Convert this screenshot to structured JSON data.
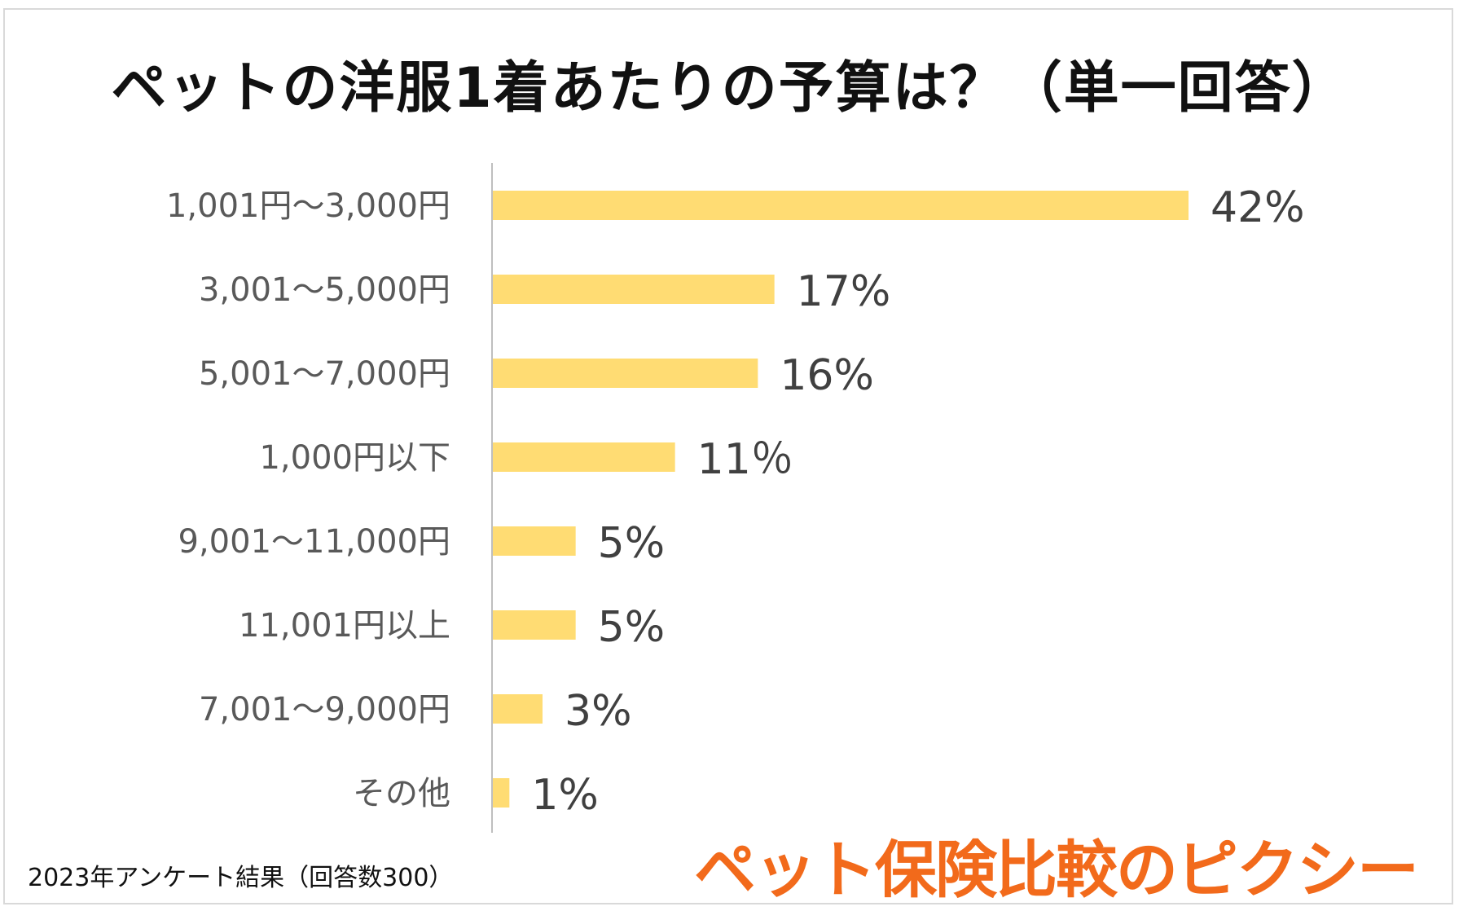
{
  "title": "ペットの洋服1着あたりの予算は？（単一回答）",
  "footnote": "2023年アンケート結果（回答数300）",
  "brand": "ペット保険比較のピクシー",
  "colors": {
    "bar": "#ffdc73",
    "axis": "#bfbfbf",
    "label": "#595959",
    "value": "#404040",
    "brand": "#f26a1b"
  },
  "chart_data": {
    "type": "bar",
    "orientation": "horizontal",
    "categories": [
      "1,001円〜3,000円",
      "3,001〜5,000円",
      "5,001〜7,000円",
      "1,000円以下",
      "9,001〜11,000円",
      "11,001円以上",
      "7,001〜9,000円",
      "その他"
    ],
    "values": [
      42,
      17,
      16,
      11,
      5,
      5,
      3,
      1
    ],
    "data_labels": [
      "42%",
      "17%",
      "16%",
      "11％",
      "5%",
      "5%",
      "3%",
      "1%"
    ],
    "xlim": [
      0,
      45
    ],
    "grid": false,
    "legend": "none"
  }
}
